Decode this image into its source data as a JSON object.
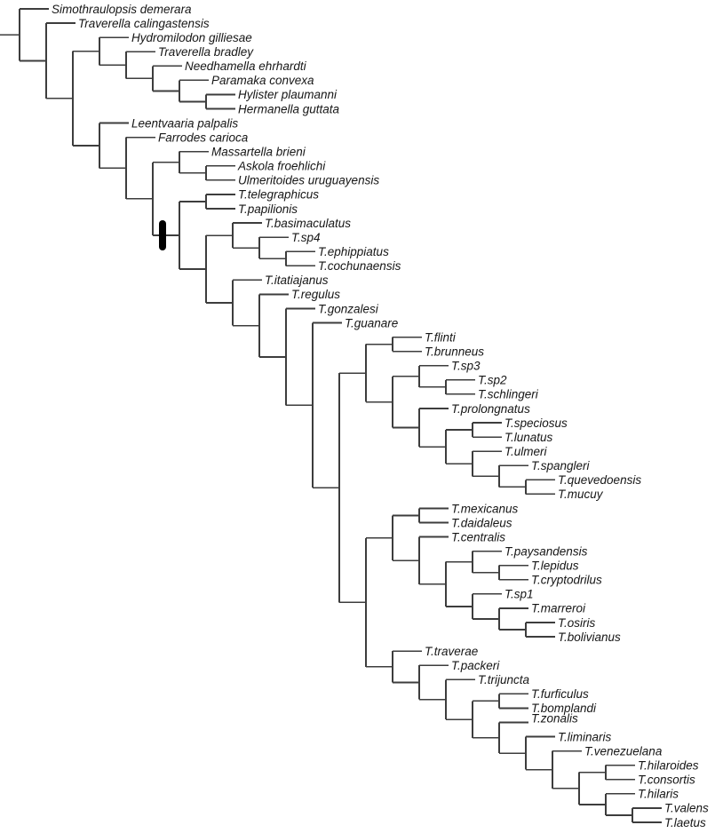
{
  "figure": {
    "type": "phylogenetic-cladogram",
    "background": "#ffffff",
    "branch_color": "#3d3d3d",
    "label_color": "#161616",
    "marker": {
      "shape": "thick-vertical-bar",
      "color": "#000000",
      "on_branch_to": "Thraulodes clade"
    }
  },
  "taxa": [
    "Simothraulopsis demerara",
    "Traverella calingastensis",
    "Hydromilodon gilliesae",
    "Traverella bradley",
    "Needhamella ehrhardti",
    "Paramaka convexa",
    "Hylister plaumanni",
    "Hermanella guttata",
    "Leentvaaria palpalis",
    "Farrodes carioca",
    "Massartella brieni",
    "Askola froehlichi",
    "Ulmeritoides uruguayensis",
    "T.telegraphicus",
    "T.papilionis",
    "T.basimaculatus",
    "T.sp4",
    "T.ephippiatus",
    "T.cochunaensis",
    "T.itatiajanus",
    "T.regulus",
    "T.gonzalesi",
    "T.guanare",
    "T.flinti",
    "T.brunneus",
    "T.sp3",
    "T.sp2",
    "T.schlingeri",
    "T.prolongnatus",
    "T.speciosus",
    "T.lunatus",
    "T.ulmeri",
    "T.spangleri",
    "T.quevedoensis",
    "T.mucuy",
    "T.mexicanus",
    "T.daidaleus",
    "T.centralis",
    "T.paysandensis",
    "T.lepidus",
    "T.cryptodrilus",
    "T.sp1",
    "T.marreroi",
    "T.osiris",
    "T.bolivianus",
    "T.traverae",
    "T.packeri",
    "T.trijuncta",
    "T.furficulus",
    "T.bomplandi",
    "T.zonalis",
    "T.liminaris",
    "T.venezuelana",
    "T.hilaroides",
    "T.consortis",
    "T.hilaris",
    "T.valens",
    "T.laetus"
  ],
  "label_y_offsets": {
    "T.zonalis": -5
  },
  "tree": {
    "c": [
      "Simothraulopsis demerara",
      {
        "c": [
          "Traverella calingastensis",
          {
            "c": [
              {
                "c": [
                  "Hydromilodon gilliesae",
                  {
                    "c": [
                      "Traverella bradley",
                      {
                        "c": [
                          "Needhamella ehrhardti",
                          {
                            "c": [
                              "Paramaka convexa",
                              {
                                "c": [
                                  "Hylister plaumanni",
                                  "Hermanella guttata"
                                ]
                              }
                            ]
                          }
                        ]
                      }
                    ]
                  }
                ]
              },
              {
                "c": [
                  "Leentvaaria palpalis",
                  {
                    "c": [
                      "Farrodes carioca",
                      {
                        "c": [
                          {
                            "c": [
                              "Massartella brieni",
                              {
                                "c": [
                                  "Askola froehlichi",
                                  "Ulmeritoides uruguayensis"
                                ]
                              }
                            ]
                          },
                          {
                            "bar": true,
                            "c": [
                              {
                                "c": [
                                  "T.telegraphicus",
                                  "T.papilionis"
                                ]
                              },
                              {
                                "c": [
                                  {
                                    "c": [
                                      "T.basimaculatus",
                                      {
                                        "c": [
                                          "T.sp4",
                                          {
                                            "c": [
                                              "T.ephippiatus",
                                              "T.cochunaensis"
                                            ]
                                          }
                                        ]
                                      }
                                    ]
                                  },
                                  {
                                    "c": [
                                      "T.itatiajanus",
                                      {
                                        "c": [
                                          "T.regulus",
                                          {
                                            "c": [
                                              "T.gonzalesi",
                                              {
                                                "c": [
                                                  "T.guanare",
                                                  {
                                                    "c": [
                                                      {
                                                        "c": [
                                                          {
                                                            "c": [
                                                              "T.flinti",
                                                              "T.brunneus"
                                                            ]
                                                          },
                                                          {
                                                            "c": [
                                                              {
                                                                "c": [
                                                                  "T.sp3",
                                                                  {
                                                                    "c": [
                                                                      "T.sp2",
                                                                      "T.schlingeri"
                                                                    ]
                                                                  }
                                                                ]
                                                              },
                                                              {
                                                                "c": [
                                                                  "T.prolongnatus",
                                                                  {
                                                                    "c": [
                                                                      {
                                                                        "c": [
                                                                          "T.speciosus",
                                                                          "T.lunatus"
                                                                        ]
                                                                      },
                                                                      {
                                                                        "c": [
                                                                          "T.ulmeri",
                                                                          {
                                                                            "c": [
                                                                              "T.spangleri",
                                                                              {
                                                                                "c": [
                                                                                  "T.quevedoensis",
                                                                                  "T.mucuy"
                                                                                ]
                                                                              }
                                                                            ]
                                                                          }
                                                                        ]
                                                                      }
                                                                    ]
                                                                  }
                                                                ]
                                                              }
                                                            ]
                                                          }
                                                        ]
                                                      },
                                                      {
                                                        "c": [
                                                          {
                                                            "c": [
                                                              {
                                                                "c": [
                                                                  "T.mexicanus",
                                                                  "T.daidaleus"
                                                                ]
                                                              },
                                                              {
                                                                "c": [
                                                                  "T.centralis",
                                                                  {
                                                                    "c": [
                                                                      {
                                                                        "c": [
                                                                          "T.paysandensis",
                                                                          {
                                                                            "c": [
                                                                              "T.lepidus",
                                                                              "T.cryptodrilus"
                                                                            ]
                                                                          }
                                                                        ]
                                                                      },
                                                                      {
                                                                        "c": [
                                                                          "T.sp1",
                                                                          {
                                                                            "c": [
                                                                              "T.marreroi",
                                                                              {
                                                                                "c": [
                                                                                  "T.osiris",
                                                                                  "T.bolivianus"
                                                                                ]
                                                                              }
                                                                            ]
                                                                          }
                                                                        ]
                                                                      }
                                                                    ]
                                                                  }
                                                                ]
                                                              }
                                                            ]
                                                          },
                                                          {
                                                            "c": [
                                                              "T.traverae",
                                                              {
                                                                "c": [
                                                                  "T.packeri",
                                                                  {
                                                                    "c": [
                                                                      "T.trijuncta",
                                                                      {
                                                                        "c": [
                                                                          {
                                                                            "c": [
                                                                              "T.furficulus",
                                                                              "T.bomplandi"
                                                                            ]
                                                                          },
                                                                          {
                                                                            "c": [
                                                                              "T.zonalis",
                                                                              {
                                                                                "c": [
                                                                                  "T.liminaris",
                                                                                  {
                                                                                    "c": [
                                                                                      "T.venezuelana",
                                                                                      {
                                                                                        "c": [
                                                                                          {
                                                                                            "c": [
                                                                                              "T.hilaroides",
                                                                                              "T.consortis"
                                                                                            ]
                                                                                          },
                                                                                          {
                                                                                            "c": [
                                                                                              "T.hilaris",
                                                                                              {
                                                                                                "c": [
                                                                                                  "T.valens",
                                                                                                  "T.laetus"
                                                                                                ]
                                                                                              }
                                                                                            ]
                                                                                          }
                                                                                        ]
                                                                                      }
                                                                                    ]
                                                                                  }
                                                                                ]
                                                                              }
                                                                            ]
                                                                          }
                                                                        ]
                                                                      }
                                                                    ]
                                                                  }
                                                                ]
                                                              }
                                                            ]
                                                          }
                                                        ]
                                                      }
                                                    ]
                                                  }
                                                ]
                                              }
                                            ]
                                          }
                                        ]
                                      }
                                    ]
                                  }
                                ]
                              }
                            ]
                          }
                        ]
                      }
                    ]
                  }
                ]
              }
            ]
          }
        ]
      }
    ]
  }
}
